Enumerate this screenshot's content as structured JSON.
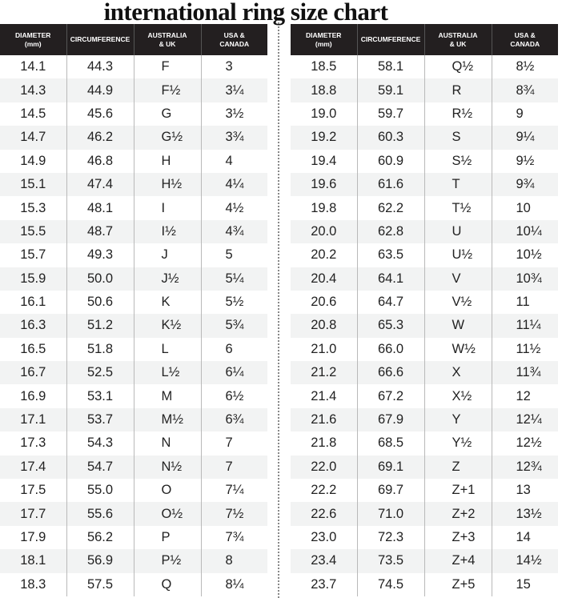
{
  "title": "international ring size chart",
  "headers": [
    "DIAMETER\n(mm)",
    "CIRCUMFERENCE",
    "AUSTRALIA\n& UK",
    "USA &\nCANADA"
  ],
  "left_rows": [
    [
      "14.1",
      "44.3",
      "F",
      "3"
    ],
    [
      "14.3",
      "44.9",
      "F½",
      "3¼"
    ],
    [
      "14.5",
      "45.6",
      "G",
      "3½"
    ],
    [
      "14.7",
      "46.2",
      "G½",
      "3¾"
    ],
    [
      "14.9",
      "46.8",
      "H",
      "4"
    ],
    [
      "15.1",
      "47.4",
      "H½",
      "4¼"
    ],
    [
      "15.3",
      "48.1",
      "I",
      "4½"
    ],
    [
      "15.5",
      "48.7",
      "I½",
      "4¾"
    ],
    [
      "15.7",
      "49.3",
      "J",
      "5"
    ],
    [
      "15.9",
      "50.0",
      "J½",
      "5¼"
    ],
    [
      "16.1",
      "50.6",
      "K",
      "5½"
    ],
    [
      "16.3",
      "51.2",
      "K½",
      "5¾"
    ],
    [
      "16.5",
      "51.8",
      "L",
      "6"
    ],
    [
      "16.7",
      "52.5",
      "L½",
      "6¼"
    ],
    [
      "16.9",
      "53.1",
      "M",
      "6½"
    ],
    [
      "17.1",
      "53.7",
      "M½",
      "6¾"
    ],
    [
      "17.3",
      "54.3",
      "N",
      "7"
    ],
    [
      "17.4",
      "54.7",
      "N½",
      "7"
    ],
    [
      "17.5",
      "55.0",
      "O",
      "7¼"
    ],
    [
      "17.7",
      "55.6",
      "O½",
      "7½"
    ],
    [
      "17.9",
      "56.2",
      "P",
      "7¾"
    ],
    [
      "18.1",
      "56.9",
      "P½",
      "8"
    ],
    [
      "18.3",
      "57.5",
      "Q",
      "8¼"
    ]
  ],
  "right_rows": [
    [
      "18.5",
      "58.1",
      "Q½",
      "8½"
    ],
    [
      "18.8",
      "59.1",
      "R",
      "8¾"
    ],
    [
      "19.0",
      "59.7",
      "R½",
      "9"
    ],
    [
      "19.2",
      "60.3",
      "S",
      "9¼"
    ],
    [
      "19.4",
      "60.9",
      "S½",
      "9½"
    ],
    [
      "19.6",
      "61.6",
      "T",
      "9¾"
    ],
    [
      "19.8",
      "62.2",
      "T½",
      "10"
    ],
    [
      "20.0",
      "62.8",
      "U",
      "10¼"
    ],
    [
      "20.2",
      "63.5",
      "U½",
      "10½"
    ],
    [
      "20.4",
      "64.1",
      "V",
      "10¾"
    ],
    [
      "20.6",
      "64.7",
      "V½",
      "11"
    ],
    [
      "20.8",
      "65.3",
      "W",
      "11¼"
    ],
    [
      "21.0",
      "66.0",
      "W½",
      "11½"
    ],
    [
      "21.2",
      "66.6",
      "X",
      "11¾"
    ],
    [
      "21.4",
      "67.2",
      "X½",
      "12"
    ],
    [
      "21.6",
      "67.9",
      "Y",
      "12¼"
    ],
    [
      "21.8",
      "68.5",
      "Y½",
      "12½"
    ],
    [
      "22.0",
      "69.1",
      "Z",
      "12¾"
    ],
    [
      "22.2",
      "69.7",
      "Z+1",
      "13"
    ],
    [
      "22.6",
      "71.0",
      "Z+2",
      "13½"
    ],
    [
      "23.0",
      "72.3",
      "Z+3",
      "14"
    ],
    [
      "23.4",
      "73.5",
      "Z+4",
      "14½"
    ],
    [
      "23.7",
      "74.5",
      "Z+5",
      "15"
    ]
  ],
  "colors": {
    "header_bg": "#231f20",
    "alt_row": "#f2f3f3"
  }
}
